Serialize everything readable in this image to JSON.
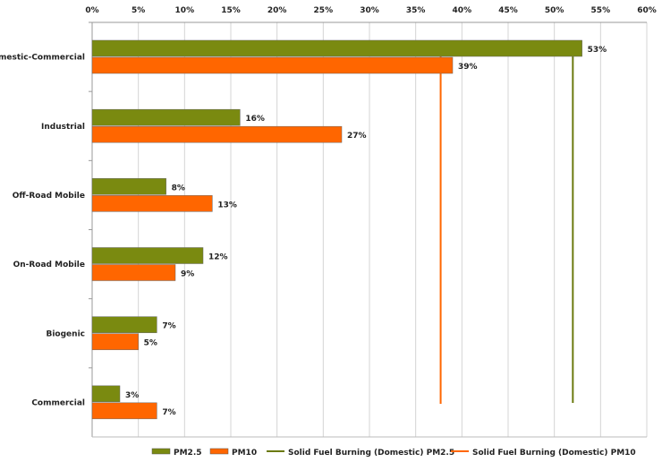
{
  "chart_data": {
    "type": "bar",
    "orientation": "horizontal",
    "categories": [
      "Domestic-Commercial",
      "Industrial",
      "Off-Road Mobile",
      "On-Road Mobile",
      "Biogenic",
      "Commercial"
    ],
    "series": [
      {
        "name": "PM2.5",
        "values": [
          53,
          16,
          8,
          12,
          7,
          3
        ],
        "labels": [
          "53%",
          "16%",
          "8%",
          "12%",
          "7%",
          "3%"
        ],
        "color": "#7a8a10"
      },
      {
        "name": "PM10",
        "values": [
          39,
          27,
          13,
          9,
          5,
          7
        ],
        "labels": [
          "39%",
          "27%",
          "13%",
          "9%",
          "5%",
          "7%"
        ],
        "color": "#ff6600"
      }
    ],
    "reference_lines": [
      {
        "name": "Solid Fuel Burning (Domestic) PM2.5",
        "value": 52,
        "color": "#6b7a10"
      },
      {
        "name": "Solid Fuel Burning (Domestic) PM10",
        "value": 37.7,
        "color": "#ff6600"
      }
    ],
    "xlim": [
      0,
      60
    ],
    "xticks": [
      0,
      5,
      10,
      15,
      20,
      25,
      30,
      35,
      40,
      45,
      50,
      55,
      60
    ],
    "xtick_labels": [
      "0%",
      "5%",
      "10%",
      "15%",
      "20%",
      "25%",
      "30%",
      "35%",
      "40%",
      "45%",
      "50%",
      "55%",
      "60%"
    ],
    "xaxis_position": "top",
    "grid": true,
    "legend_position": "bottom",
    "title": "",
    "xlabel": "",
    "ylabel": ""
  }
}
